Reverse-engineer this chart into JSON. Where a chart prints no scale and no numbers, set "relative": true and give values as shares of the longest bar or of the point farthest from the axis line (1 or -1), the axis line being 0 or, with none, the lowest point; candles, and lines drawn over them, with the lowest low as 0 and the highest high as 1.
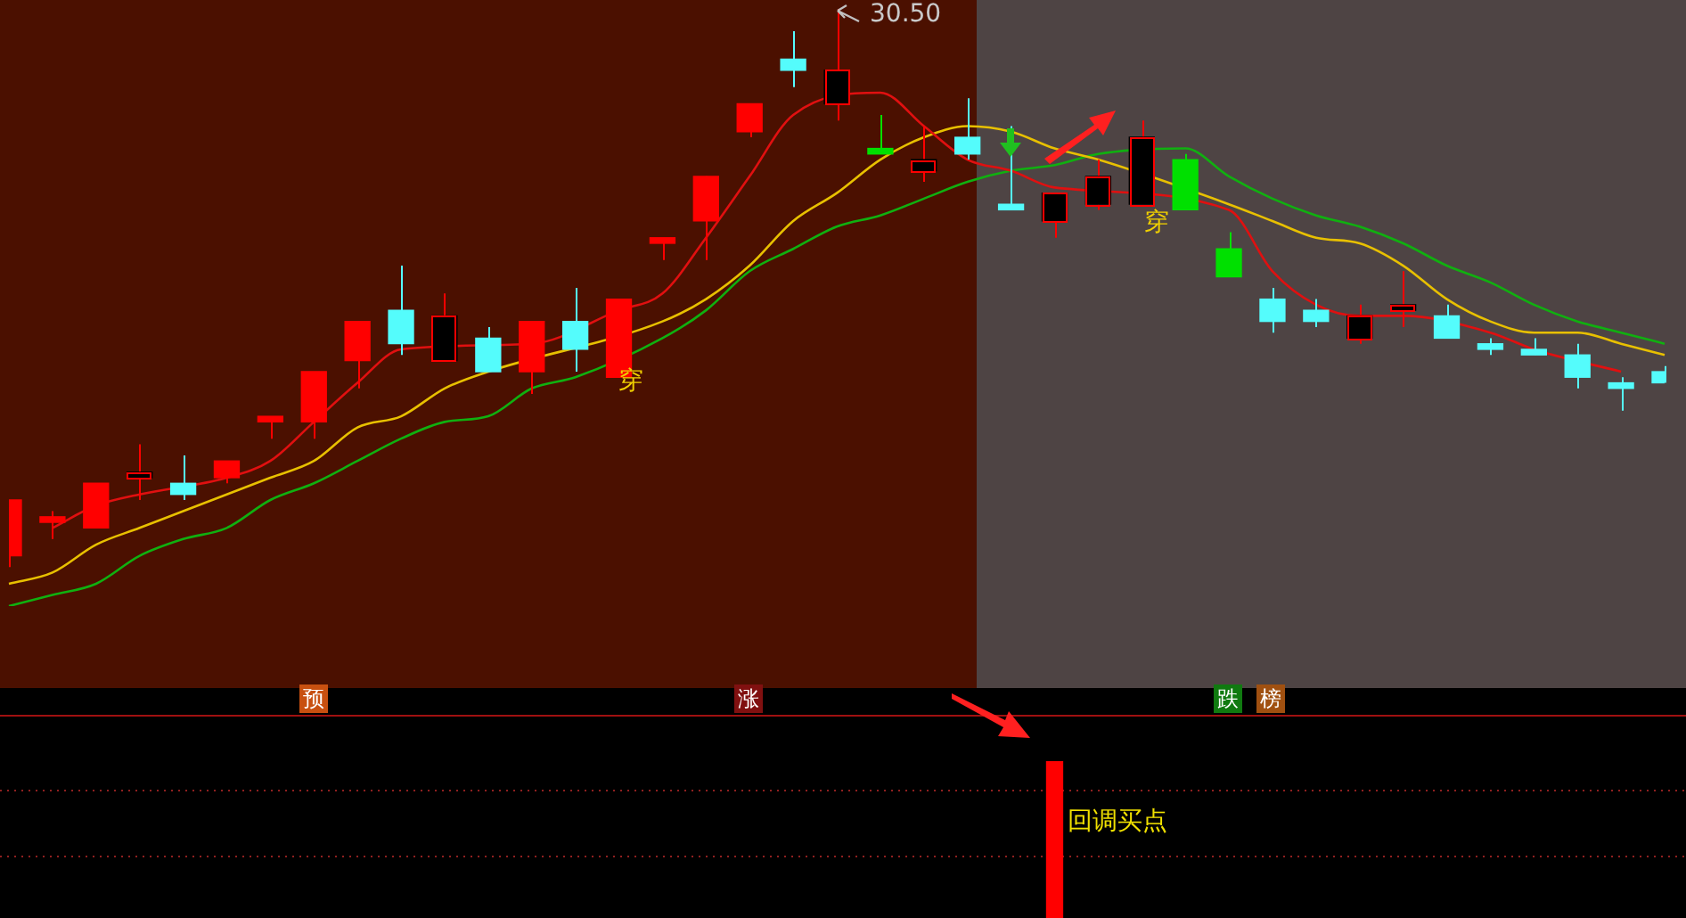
{
  "chart_data": [
    {
      "type": "candlestick",
      "relative": true,
      "legend": false,
      "color": "#ff0000",
      "categories": [
        null,
        null,
        null,
        null,
        null,
        null,
        null,
        null,
        null,
        null,
        null,
        null,
        null,
        null,
        null,
        null,
        null,
        null,
        null,
        null,
        null,
        null,
        null,
        null,
        null,
        null,
        null,
        null,
        null,
        null,
        null,
        null,
        null,
        null,
        null,
        null,
        null,
        null,
        null
      ],
      "ohlc": [
        [
          0.02,
          0.12,
          0,
          0.12
        ],
        [
          0.08,
          0.1,
          0.05,
          0.09
        ],
        [
          0.07,
          0.15,
          0.07,
          0.15
        ],
        [
          0.16,
          0.22,
          0.12,
          0.17
        ],
        [
          0.15,
          0.2,
          0.12,
          0.13
        ],
        [
          0.16,
          0.19,
          0.15,
          0.19
        ],
        [
          0.26,
          0.27,
          0.23,
          0.27
        ],
        [
          0.26,
          0.35,
          0.23,
          0.35
        ],
        [
          0.37,
          0.44,
          0.32,
          0.44
        ],
        [
          0.46,
          0.54,
          0.38,
          0.4
        ],
        [
          0.37,
          0.49,
          0.37,
          0.45
        ],
        [
          0.41,
          0.43,
          0.35,
          0.35
        ],
        [
          0.35,
          0.44,
          0.31,
          0.44
        ],
        [
          0.44,
          0.5,
          0.35,
          0.39
        ],
        [
          0.34,
          0.48,
          0.34,
          0.48
        ],
        [
          0.58,
          0.59,
          0.55,
          0.59
        ],
        [
          0.62,
          0.7,
          0.55,
          0.7
        ],
        [
          0.78,
          0.83,
          0.77,
          0.83
        ],
        [
          0.91,
          0.96,
          0.86,
          0.89
        ],
        [
          0.83,
          1,
          0.8,
          0.89
        ],
        [
          0.75,
          0.81,
          0.74,
          0.74
        ],
        [
          0.71,
          0.79,
          0.69,
          0.73
        ],
        [
          0.77,
          0.84,
          0.73,
          0.74
        ],
        [
          0.65,
          0.79,
          0.64,
          0.64
        ],
        [
          0.62,
          0.67,
          0.59,
          0.67
        ],
        [
          0.65,
          0.73,
          0.64,
          0.7
        ],
        [
          0.65,
          0.8,
          0.65,
          0.77
        ],
        [
          0.73,
          0.74,
          0.64,
          0.64
        ],
        [
          0.57,
          0.6,
          0.52,
          0.52
        ],
        [
          0.48,
          0.5,
          0.42,
          0.44
        ],
        [
          0.46,
          0.48,
          0.43,
          0.44
        ],
        [
          0.41,
          0.47,
          0.4,
          0.45
        ],
        [
          0.46,
          0.53,
          0.43,
          0.47
        ],
        [
          0.45,
          0.47,
          0.41,
          0.41
        ],
        [
          0.4,
          0.41,
          0.38,
          0.39
        ],
        [
          0.39,
          0.41,
          0.38,
          0.38
        ],
        [
          0.38,
          0.4,
          0.32,
          0.34
        ],
        [
          0.33,
          0.34,
          0.28,
          0.32
        ],
        [
          0.35,
          0.36,
          0.33,
          0.33
        ]
      ],
      "colors": [
        "#ff0000",
        "#ff0000",
        "#ff0000",
        "#000000",
        "#54fcfc",
        "#ff0000",
        "#ff0000",
        "#ff0000",
        "#ff0000",
        "#54fcfc",
        "#000000",
        "#54fcfc",
        "#ff0000",
        "#54fcfc",
        "#ff0000",
        "#ff0000",
        "#ff0000",
        "#ff0000",
        "#54fcfc",
        "#000000",
        "#00e000",
        "#000000",
        "#54fcfc",
        "#54fcfc",
        "#000000",
        "#000000",
        "#000000",
        "#00e000",
        "#00e000",
        "#54fcfc",
        "#54fcfc",
        "#000000",
        "#000000",
        "#54fcfc",
        "#54fcfc",
        "#54fcfc",
        "#54fcfc",
        "#54fcfc",
        "#54fcfc"
      ],
      "series": [
        {
          "type": "line",
          "color": "#e01010",
          "values": [
            null,
            0.07,
            0.11,
            0.13,
            null,
            0.16,
            0.19,
            0.26,
            0.33,
            0.39,
            null,
            null,
            0.4,
            null,
            0.46,
            0.49,
            0.59,
            0.7,
            0.81,
            null,
            0.85,
            0.79,
            0.73,
            0.71,
            0.68,
            null,
            null,
            null,
            0.64,
            0.53,
            0.47,
            0.45,
            0.45,
            null,
            0.42,
            0.39,
            null,
            0.35,
            null
          ]
        },
        {
          "type": "line",
          "color": "#e8c000",
          "values": [
            -0.03,
            -0.01,
            0.04,
            0.07,
            0.1,
            0.13,
            0.16,
            0.19,
            0.25,
            0.27,
            0.32,
            0.35,
            null,
            null,
            null,
            0.44,
            0.48,
            0.54,
            0.62,
            0.67,
            0.73,
            0.77,
            0.79,
            0.78,
            0.75,
            0.73,
            null,
            null,
            0.65,
            0.62,
            0.59,
            0.58,
            0.54,
            0.48,
            0.44,
            0.42,
            0.42,
            0.4,
            0.38
          ]
        },
        {
          "type": "line",
          "color": "#10b010",
          "values": [
            -0.07,
            -0.05,
            -0.03,
            0.02,
            0.05,
            0.07,
            0.12,
            0.15,
            0.19,
            0.23,
            0.26,
            0.27,
            0.32,
            0.34,
            null,
            0.41,
            0.46,
            0.53,
            0.57,
            0.61,
            0.63,
            0.66,
            0.69,
            0.71,
            0.72,
            0.74,
            null,
            0.75,
            0.7,
            0.66,
            0.63,
            0.61,
            0.58,
            0.54,
            0.51,
            0.47,
            0.44,
            0.42,
            0.4
          ]
        }
      ],
      "annotations": [
        "30.50",
        "穿",
        "穿"
      ]
    },
    {
      "type": "bar",
      "relative": true,
      "legend": false,
      "color": "#ff0000",
      "categories": [
        null,
        null,
        null,
        null,
        null,
        null,
        null,
        null,
        null,
        null,
        null,
        null,
        null,
        null,
        null,
        null,
        null,
        null,
        null,
        null,
        null,
        null,
        null,
        null,
        null,
        null,
        null,
        null,
        null,
        null,
        null,
        null,
        null,
        null,
        null,
        null,
        null,
        null,
        null
      ],
      "values": [
        null,
        null,
        null,
        null,
        null,
        null,
        null,
        null,
        null,
        null,
        null,
        null,
        null,
        null,
        null,
        null,
        null,
        null,
        null,
        null,
        null,
        null,
        null,
        null,
        1,
        null,
        null,
        null,
        null,
        null,
        null,
        null,
        null,
        null,
        null,
        null,
        null,
        null,
        null
      ],
      "ref_lines": [
        {
          "axis": "y",
          "value": 0.82,
          "color": "#902020",
          "line_style": "dotted"
        },
        {
          "axis": "y",
          "value": 0.4,
          "color": "#902020",
          "line_style": "dotted"
        }
      ],
      "annotations": [
        "预",
        "涨",
        "跌",
        "榜",
        "回调买点"
      ]
    }
  ]
}
